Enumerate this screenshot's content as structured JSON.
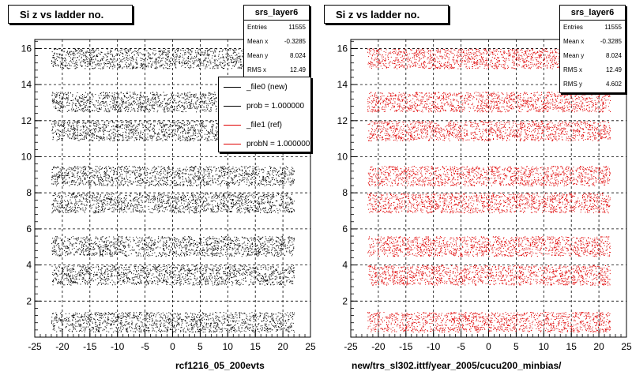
{
  "chart_data": [
    {
      "type": "scatter",
      "title": "Si z vs ladder no.",
      "xlim": [
        -25,
        25
      ],
      "ylim": [
        0,
        16.5
      ],
      "x_ticks": [
        "-25",
        "-20",
        "-15",
        "-10",
        "-5",
        "0",
        "5",
        "10",
        "15",
        "20",
        "25"
      ],
      "y_ticks": [
        "2",
        "4",
        "6",
        "8",
        "10",
        "12",
        "14",
        "16"
      ],
      "grid": true,
      "marker_color": "#000000",
      "bands": [
        {
          "y_min": 0.3,
          "y_max": 1.4,
          "x_min": -22,
          "x_max": 22
        },
        {
          "y_min": 2.9,
          "y_max": 4.0,
          "x_min": -22,
          "x_max": 22
        },
        {
          "y_min": 4.5,
          "y_max": 5.6,
          "x_min": -22,
          "x_max": 22
        },
        {
          "y_min": 6.9,
          "y_max": 8.0,
          "x_min": -22,
          "x_max": 22
        },
        {
          "y_min": 8.4,
          "y_max": 9.5,
          "x_min": -22,
          "x_max": 22
        },
        {
          "y_min": 10.9,
          "y_max": 12.0,
          "x_min": -22,
          "x_max": 22
        },
        {
          "y_min": 12.5,
          "y_max": 13.6,
          "x_min": -22,
          "x_max": 22
        },
        {
          "y_min": 14.9,
          "y_max": 16.0,
          "x_min": -22,
          "x_max": 22
        }
      ],
      "stats": {
        "name": "srs_layer6",
        "rows": [
          {
            "label": "Entries",
            "value": "11555"
          },
          {
            "label": "Mean x",
            "value": "-0.3285"
          },
          {
            "label": "Mean y",
            "value": "8.024"
          },
          {
            "label": "RMS x",
            "value": "12.49"
          }
        ]
      },
      "legend": [
        {
          "label": "_file0 (new)",
          "color": "#000000"
        },
        {
          "label": "prob = 1.000000",
          "color": "#000000"
        },
        {
          "label": "_file1 (ref)",
          "color": "#e00000"
        },
        {
          "label": "probN = 1.000000",
          "color": "#e00000"
        }
      ],
      "footer_label": "rcf1216_05_200evts"
    },
    {
      "type": "scatter",
      "title": "Si z vs ladder no.",
      "xlim": [
        -25,
        25
      ],
      "ylim": [
        0,
        16.5
      ],
      "x_ticks": [
        "-25",
        "-20",
        "-15",
        "-10",
        "-5",
        "0",
        "5",
        "10",
        "15",
        "20",
        "25"
      ],
      "y_ticks": [
        "2",
        "4",
        "6",
        "8",
        "10",
        "12",
        "14",
        "16"
      ],
      "grid": true,
      "marker_color": "#e00000",
      "bands": [
        {
          "y_min": 0.3,
          "y_max": 1.4,
          "x_min": -22,
          "x_max": 22
        },
        {
          "y_min": 2.9,
          "y_max": 4.0,
          "x_min": -22,
          "x_max": 22
        },
        {
          "y_min": 4.5,
          "y_max": 5.6,
          "x_min": -22,
          "x_max": 22
        },
        {
          "y_min": 6.9,
          "y_max": 8.0,
          "x_min": -22,
          "x_max": 22
        },
        {
          "y_min": 8.4,
          "y_max": 9.5,
          "x_min": -22,
          "x_max": 22
        },
        {
          "y_min": 10.9,
          "y_max": 12.0,
          "x_min": -22,
          "x_max": 22
        },
        {
          "y_min": 12.5,
          "y_max": 13.6,
          "x_min": -22,
          "x_max": 22
        },
        {
          "y_min": 14.9,
          "y_max": 16.0,
          "x_min": -22,
          "x_max": 22
        }
      ],
      "stats": {
        "name": "srs_layer6",
        "rows": [
          {
            "label": "Entries",
            "value": "11555"
          },
          {
            "label": "Mean x",
            "value": "-0.3285"
          },
          {
            "label": "Mean y",
            "value": "8.024"
          },
          {
            "label": "RMS x",
            "value": "12.49"
          },
          {
            "label": "RMS y",
            "value": "4.602"
          }
        ]
      },
      "legend": [],
      "footer_label": "new/trs_sl302.ittf/year_2005/cucu200_minbias/"
    }
  ]
}
